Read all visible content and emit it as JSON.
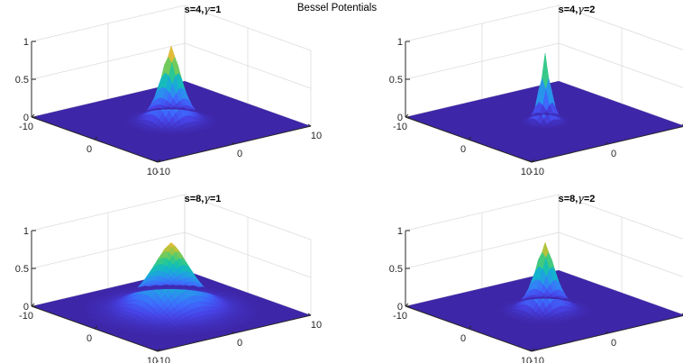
{
  "figure": {
    "title": "Bessel Potentials"
  },
  "chart_data": [
    {
      "type": "surface",
      "title_parts": [
        "s=4,",
        "γ",
        "=1"
      ],
      "s": 4,
      "gamma": 1,
      "xlim": [
        -10,
        10
      ],
      "ylim": [
        -10,
        10
      ],
      "zlim": [
        0,
        1
      ],
      "xticks": [
        -10,
        0,
        10
      ],
      "yticks": [
        -10,
        0,
        10
      ],
      "zticks": [
        0,
        0.5,
        1
      ],
      "peak": 1,
      "grid": true
    },
    {
      "type": "surface",
      "title_parts": [
        "s=4,",
        "γ",
        "=2"
      ],
      "s": 4,
      "gamma": 2,
      "xlim": [
        -10,
        10
      ],
      "ylim": [
        -10,
        10
      ],
      "zlim": [
        0,
        1
      ],
      "xticks": [
        -10,
        0,
        10
      ],
      "yticks": [
        -10,
        0,
        10
      ],
      "zticks": [
        0,
        0.5,
        1
      ],
      "peak": 0.9,
      "grid": true
    },
    {
      "type": "surface",
      "title_parts": [
        "s=8,",
        "γ",
        "=1"
      ],
      "s": 8,
      "gamma": 1,
      "xlim": [
        -10,
        10
      ],
      "ylim": [
        -10,
        10
      ],
      "zlim": [
        0,
        1
      ],
      "xticks": [
        -10,
        0,
        10
      ],
      "yticks": [
        -10,
        0,
        10
      ],
      "zticks": [
        0,
        0.5,
        1
      ],
      "peak": 0.9,
      "grid": true
    },
    {
      "type": "surface",
      "title_parts": [
        "s=8,",
        "γ",
        "=2"
      ],
      "s": 8,
      "gamma": 2,
      "xlim": [
        -10,
        10
      ],
      "ylim": [
        -10,
        10
      ],
      "zlim": [
        0,
        1
      ],
      "xticks": [
        -10,
        0,
        10
      ],
      "yticks": [
        -10,
        0,
        10
      ],
      "zticks": [
        0,
        0.5,
        1
      ],
      "peak": 0.9,
      "grid": true
    }
  ],
  "colors": {
    "floor": "#3e26a8",
    "grid": "#dcdcdc",
    "axis": "#262626",
    "colormap": [
      "#3e26a8",
      "#4743e6",
      "#3d6cfd",
      "#2a93ee",
      "#14b2cf",
      "#1ac6a2",
      "#5ccc69",
      "#b5c33a",
      "#f1b83a",
      "#fae220"
    ]
  }
}
